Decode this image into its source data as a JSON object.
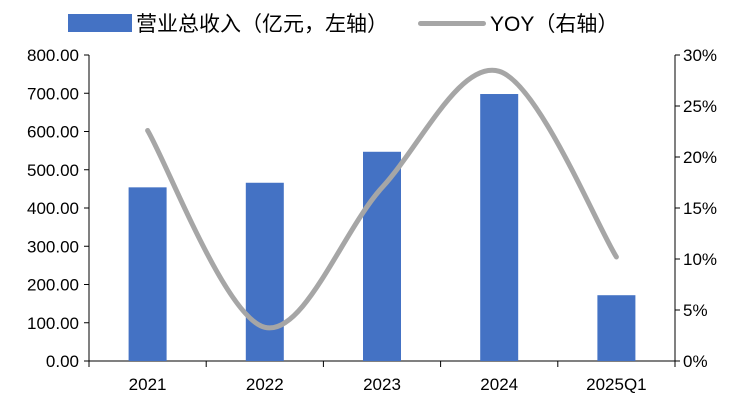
{
  "chart_data": {
    "type": "bar+line",
    "categories": [
      "2021",
      "2022",
      "2023",
      "2024",
      "2025Q1"
    ],
    "series": [
      {
        "name": "营业总收入（亿元，左轴）",
        "type": "bar",
        "axis": "left",
        "color": "#4472C4",
        "values": [
          454,
          466,
          547,
          698,
          172
        ]
      },
      {
        "name": "YOY（右轴）",
        "type": "line",
        "axis": "right",
        "color": "#A6A6A6",
        "smooth": true,
        "values": [
          0.226,
          0.033,
          0.17,
          0.284,
          0.102
        ]
      }
    ],
    "y_left": {
      "min": 0,
      "max": 800,
      "step": 100,
      "ticks": [
        "0.00",
        "100.00",
        "200.00",
        "300.00",
        "400.00",
        "500.00",
        "600.00",
        "700.00",
        "800.00"
      ]
    },
    "y_right": {
      "min": 0,
      "max": 0.3,
      "step": 0.05,
      "ticks": [
        "0%",
        "5%",
        "10%",
        "15%",
        "20%",
        "25%",
        "30%"
      ]
    },
    "grid": false,
    "legend": "top"
  }
}
